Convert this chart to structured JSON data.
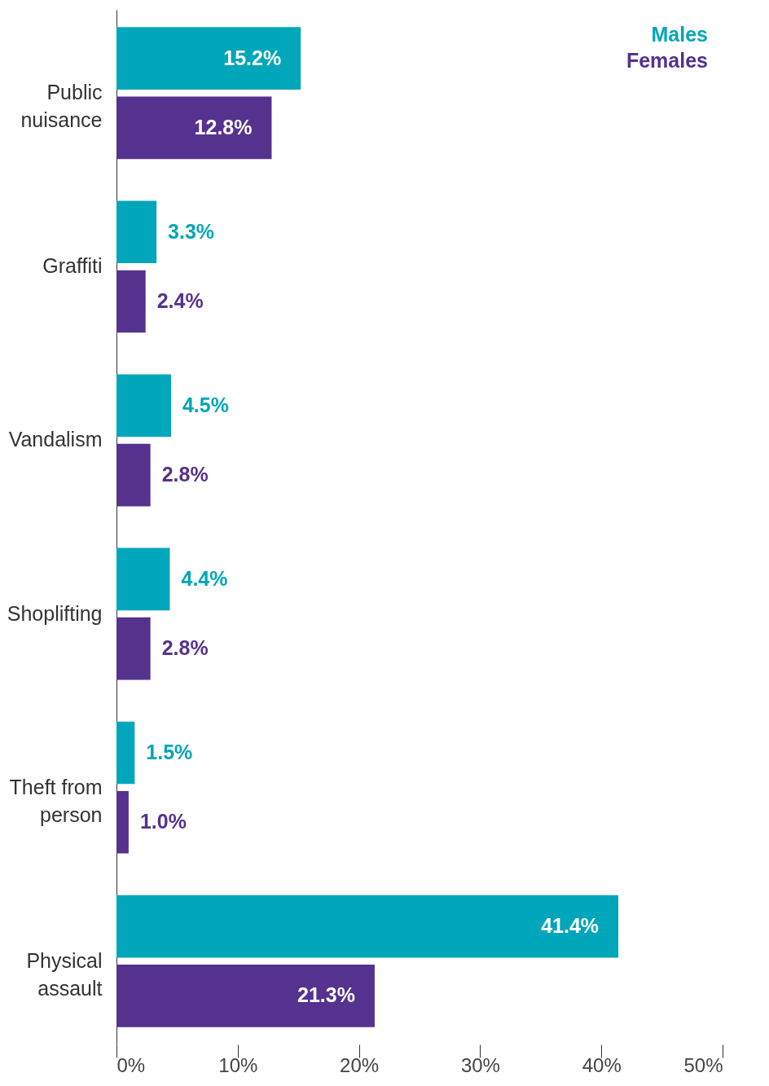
{
  "chart_data": {
    "type": "bar",
    "orientation": "horizontal",
    "categories": [
      "Public nuisance",
      "Graffiti",
      "Vandalism",
      "Shoplifting",
      "Theft from person",
      "Physical assault"
    ],
    "series": [
      {
        "name": "Males",
        "color": "#00a6b9",
        "values": [
          15.2,
          3.3,
          4.5,
          4.4,
          1.5,
          41.4
        ],
        "value_labels": [
          "15.2%",
          "3.3%",
          "4.5%",
          "4.4%",
          "1.5%",
          "41.4%"
        ]
      },
      {
        "name": "Females",
        "color": "#54328e",
        "values": [
          12.8,
          2.4,
          2.8,
          2.8,
          1.0,
          21.3
        ],
        "value_labels": [
          "12.8%",
          "2.4%",
          "2.8%",
          "2.8%",
          "1.0%",
          "21.3%"
        ]
      }
    ],
    "xlim": [
      0,
      50
    ],
    "xticks": [
      {
        "value": 0,
        "label": "0%"
      },
      {
        "value": 10,
        "label": "10%"
      },
      {
        "value": 20,
        "label": "20%"
      },
      {
        "value": 30,
        "label": "30%"
      },
      {
        "value": 40,
        "label": "40%"
      },
      {
        "value": 50,
        "label": "50%"
      }
    ],
    "grid": false,
    "legend": "top right"
  }
}
